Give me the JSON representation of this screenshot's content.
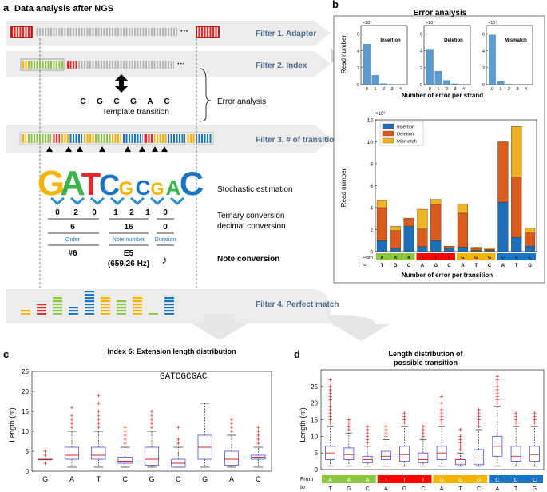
{
  "panel_a": {
    "letter": "a",
    "title": "Data analysis after NGS",
    "filter1": "Filter 1. Adaptor",
    "filter2": "Filter 2. Index",
    "filter3": "Filter 3. # of transition",
    "filter4": "Filter 4. Perfect match",
    "template_letters": [
      "C",
      "G",
      "C",
      "G",
      "A",
      "C"
    ],
    "template_caption": "Template transition",
    "error_analysis_label": "Error analysis",
    "logo_letters": [
      "G",
      "A",
      "T",
      "C",
      "G",
      "C",
      "G",
      "A",
      "C"
    ],
    "stochastic_label": "Stochastic estimation",
    "ternary_digits": [
      "0",
      "2",
      "0",
      "1",
      "2",
      "1",
      "0"
    ],
    "ternary_label": "Ternary conversion",
    "decimal_label": "decimal conversion",
    "decimal_values": [
      "6",
      "16",
      "0"
    ],
    "decimal_captions": [
      "Order",
      "Note number",
      "Duration"
    ],
    "note_values": [
      "#6",
      "E5",
      "(659.26 Hz)"
    ],
    "note_symbol": "♪",
    "note_label": "Note conversion"
  },
  "panel_b": {
    "letter": "b",
    "title": "Error analysis",
    "small_xlabel": "Number of error per strand",
    "small_ylabel": "Read number",
    "small_exp": "×10⁴",
    "large_xlabel": "Number of error per transition",
    "large_ylabel": "Read number",
    "large_exp": "×10³",
    "from_label": "From",
    "to_label": "to"
  },
  "panel_c": {
    "letter": "c",
    "title": "Index 6: Extension length distribution",
    "sequence": "GATCGCGAC",
    "ylabel": "Length (nt)"
  },
  "panel_d": {
    "letter": "d",
    "title_line1": "Length distribution of",
    "title_line2": "possible transition",
    "ylabel": "Length (nt)",
    "from_label": "From",
    "to_label": "to"
  },
  "chart_data": [
    {
      "id": "b-insertion",
      "type": "bar",
      "title": "Insertion",
      "categories": [
        "0",
        "1",
        "2",
        "3",
        "4"
      ],
      "values": [
        4.8,
        1.1,
        0.12,
        0.02,
        0.0
      ],
      "ylim": [
        0,
        7
      ],
      "unit": "×10⁴",
      "yticks": [
        "0",
        "2",
        "4",
        "6"
      ],
      "xticks": [
        "0",
        "1",
        "2",
        "3",
        "4"
      ]
    },
    {
      "id": "b-deletion",
      "type": "bar",
      "title": "Deletion",
      "categories": [
        "0",
        "1",
        "2",
        "3",
        "4"
      ],
      "values": [
        4.2,
        1.6,
        0.5,
        0.1,
        0.03
      ],
      "ylim": [
        0,
        7
      ],
      "unit": "×10⁴",
      "yticks": [
        "0",
        "2",
        "4",
        "6"
      ],
      "xticks": [
        "0",
        "1",
        "2",
        "3",
        "4"
      ]
    },
    {
      "id": "b-mismatch",
      "type": "bar",
      "title": "Mismatch",
      "categories": [
        "0",
        "1",
        "2",
        "3",
        "4"
      ],
      "values": [
        5.9,
        0.35,
        0.05,
        0.01,
        0.0
      ],
      "ylim": [
        0,
        7
      ],
      "unit": "×10⁴",
      "yticks": [
        "0",
        "2",
        "4",
        "6"
      ],
      "xticks": [
        "0",
        "1",
        "2",
        "3",
        "4"
      ]
    },
    {
      "id": "b-transition",
      "type": "bar",
      "stacked": true,
      "ylabel": "Read number",
      "xlabel": "Number of error per transition",
      "unit": "×10³",
      "ylim": [
        0,
        12
      ],
      "yticks": [
        "0",
        "2",
        "4",
        "6",
        "8",
        "10",
        "12"
      ],
      "from": [
        "A",
        "A",
        "A",
        "T",
        "T",
        "T",
        "G",
        "G",
        "G",
        "C",
        "C",
        "C"
      ],
      "to": [
        "T",
        "G",
        "C",
        "A",
        "G",
        "C",
        "A",
        "T",
        "C",
        "A",
        "T",
        "G"
      ],
      "group_colors": [
        "#8dc63f",
        "#ff0000",
        "#f5b400",
        "#1a75c2"
      ],
      "series": [
        {
          "name": "Insertion",
          "color": "#1a6fb8",
          "values": [
            1.0,
            0.3,
            2.3,
            0.45,
            1.0,
            0.3,
            0.4,
            0.1,
            0.1,
            4.5,
            1.3,
            0.5
          ]
        },
        {
          "name": "Deletion",
          "color": "#d95b1d",
          "values": [
            3.0,
            1.6,
            0.75,
            1.6,
            3.3,
            0.2,
            3.1,
            0.15,
            0.1,
            5.5,
            5.5,
            1.2
          ]
        },
        {
          "name": "Mismatch",
          "color": "#f0b323",
          "values": [
            0.65,
            0.4,
            0.0,
            1.8,
            0.45,
            0.0,
            0.8,
            0.15,
            0.1,
            0.0,
            4.6,
            0.45
          ]
        }
      ]
    },
    {
      "id": "c-boxplot",
      "type": "boxplot",
      "title": "Index 6: Extension length distribution",
      "ylabel": "Length (nt)",
      "ylim": [
        0,
        25
      ],
      "yticks": [
        "0",
        "5",
        "10",
        "15",
        "20",
        "25"
      ],
      "categories": [
        "G",
        "A",
        "T",
        "C",
        "G",
        "C",
        "G",
        "A",
        "C"
      ],
      "boxes": [
        {
          "q1": 3,
          "median": 3,
          "q3": 3,
          "wlo": 3,
          "whi": 3,
          "outliers": [
            2,
            4,
            5
          ]
        },
        {
          "q1": 3,
          "median": 4,
          "q3": 6,
          "wlo": 1,
          "whi": 10,
          "outliers": [
            11,
            12,
            13,
            14,
            16
          ]
        },
        {
          "q1": 3,
          "median": 4,
          "q3": 6,
          "wlo": 1,
          "whi": 10,
          "outliers": [
            11,
            12,
            13,
            14,
            15,
            17,
            19
          ]
        },
        {
          "q1": 2,
          "median": 2.5,
          "q3": 3.5,
          "wlo": 1,
          "whi": 6,
          "outliers": [
            7,
            8,
            9,
            10,
            11
          ]
        },
        {
          "q1": 1.5,
          "median": 3,
          "q3": 6,
          "wlo": 1,
          "whi": 10,
          "outliers": [
            11,
            12,
            13,
            14,
            15
          ]
        },
        {
          "q1": 1,
          "median": 2,
          "q3": 3,
          "wlo": 1,
          "whi": 6,
          "outliers": [
            7,
            8,
            11
          ]
        },
        {
          "q1": 3,
          "median": 6,
          "q3": 9,
          "wlo": 1,
          "whi": 17,
          "outliers": []
        },
        {
          "q1": 1.5,
          "median": 3,
          "q3": 5,
          "wlo": 1,
          "whi": 9,
          "outliers": [
            10,
            11,
            12,
            13
          ]
        },
        {
          "q1": 3,
          "median": 3.5,
          "q3": 4,
          "wlo": 1,
          "whi": 6,
          "outliers": [
            7,
            8,
            9,
            10,
            11
          ]
        }
      ]
    },
    {
      "id": "d-boxplot",
      "type": "boxplot",
      "title": "Length distribution of possible transition",
      "ylabel": "Length (nt)",
      "ylim": [
        0,
        30
      ],
      "yticks": [
        "0",
        "5",
        "10",
        "15",
        "20",
        "25"
      ],
      "from": [
        "A",
        "A",
        "A",
        "T",
        "T",
        "T",
        "G",
        "G",
        "G",
        "C",
        "C",
        "C"
      ],
      "to": [
        "T",
        "G",
        "C",
        "A",
        "G",
        "C",
        "A",
        "T",
        "C",
        "A",
        "T",
        "G"
      ],
      "group_colors": [
        "#8dc63f",
        "#ff0000",
        "#f5b400",
        "#1a75c2"
      ],
      "boxes": [
        {
          "q1": 3,
          "median": 5,
          "q3": 7,
          "wlo": 1,
          "whi": 13,
          "outliers": [
            14,
            15,
            16,
            17,
            18,
            19,
            20,
            21,
            22,
            23,
            24,
            25,
            27
          ]
        },
        {
          "q1": 3,
          "median": 4.5,
          "q3": 6.5,
          "wlo": 1,
          "whi": 11,
          "outliers": [
            12,
            13,
            14,
            15
          ]
        },
        {
          "q1": 2,
          "median": 3,
          "q3": 4,
          "wlo": 1,
          "whi": 7,
          "outliers": [
            8,
            9,
            10,
            11,
            12,
            13
          ]
        },
        {
          "q1": 3,
          "median": 4,
          "q3": 5.5,
          "wlo": 1,
          "whi": 9,
          "outliers": [
            10,
            11,
            12,
            13
          ]
        },
        {
          "q1": 2.5,
          "median": 4.5,
          "q3": 7,
          "wlo": 1,
          "whi": 13,
          "outliers": [
            14,
            15,
            16,
            17
          ]
        },
        {
          "q1": 2,
          "median": 3,
          "q3": 5,
          "wlo": 1,
          "whi": 9,
          "outliers": [
            10,
            11,
            12,
            13
          ]
        },
        {
          "q1": 3,
          "median": 5,
          "q3": 7,
          "wlo": 1,
          "whi": 13,
          "outliers": [
            14,
            15,
            16,
            17,
            18,
            20,
            22
          ]
        },
        {
          "q1": 1.5,
          "median": 3,
          "q3": 3,
          "wlo": 1,
          "whi": 5,
          "outliers": [
            6,
            7,
            8,
            9,
            10,
            12
          ]
        },
        {
          "q1": 1.5,
          "median": 3.5,
          "q3": 6,
          "wlo": 1,
          "whi": 12,
          "outliers": [
            13,
            14,
            15,
            16,
            17,
            18
          ]
        },
        {
          "q1": 4,
          "median": 7,
          "q3": 10,
          "wlo": 1,
          "whi": 19,
          "outliers": [
            20,
            21,
            22,
            23,
            24,
            25,
            26,
            27,
            28
          ]
        },
        {
          "q1": 2.5,
          "median": 4,
          "q3": 7,
          "wlo": 1,
          "whi": 13,
          "outliers": [
            14,
            15,
            16,
            17
          ]
        },
        {
          "q1": 2.5,
          "median": 4.5,
          "q3": 7,
          "wlo": 1,
          "whi": 13,
          "outliers": [
            14,
            15,
            16,
            17
          ]
        }
      ]
    }
  ]
}
